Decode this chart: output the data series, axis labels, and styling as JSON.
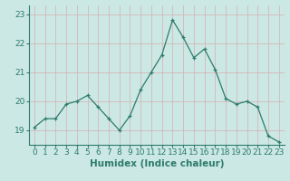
{
  "x": [
    0,
    1,
    2,
    3,
    4,
    5,
    6,
    7,
    8,
    9,
    10,
    11,
    12,
    13,
    14,
    15,
    16,
    17,
    18,
    19,
    20,
    21,
    22,
    23
  ],
  "y": [
    19.1,
    19.4,
    19.4,
    19.9,
    20.0,
    20.2,
    19.8,
    19.4,
    19.0,
    19.5,
    20.4,
    21.0,
    21.6,
    22.8,
    22.2,
    21.5,
    21.8,
    21.1,
    20.1,
    19.9,
    20.0,
    19.8,
    18.8,
    18.6
  ],
  "line_color": "#2d7b6c",
  "marker": "+",
  "marker_color": "#2d7b6c",
  "bg_color": "#cce8e4",
  "grid_color": "#d4b8b8",
  "xlabel": "Humidex (Indice chaleur)",
  "ylabel": "",
  "ylim": [
    18.5,
    23.3
  ],
  "yticks": [
    19,
    20,
    21,
    22,
    23
  ],
  "xticks": [
    0,
    1,
    2,
    3,
    4,
    5,
    6,
    7,
    8,
    9,
    10,
    11,
    12,
    13,
    14,
    15,
    16,
    17,
    18,
    19,
    20,
    21,
    22,
    23
  ],
  "xlabel_fontsize": 7.5,
  "tick_fontsize": 6.5
}
